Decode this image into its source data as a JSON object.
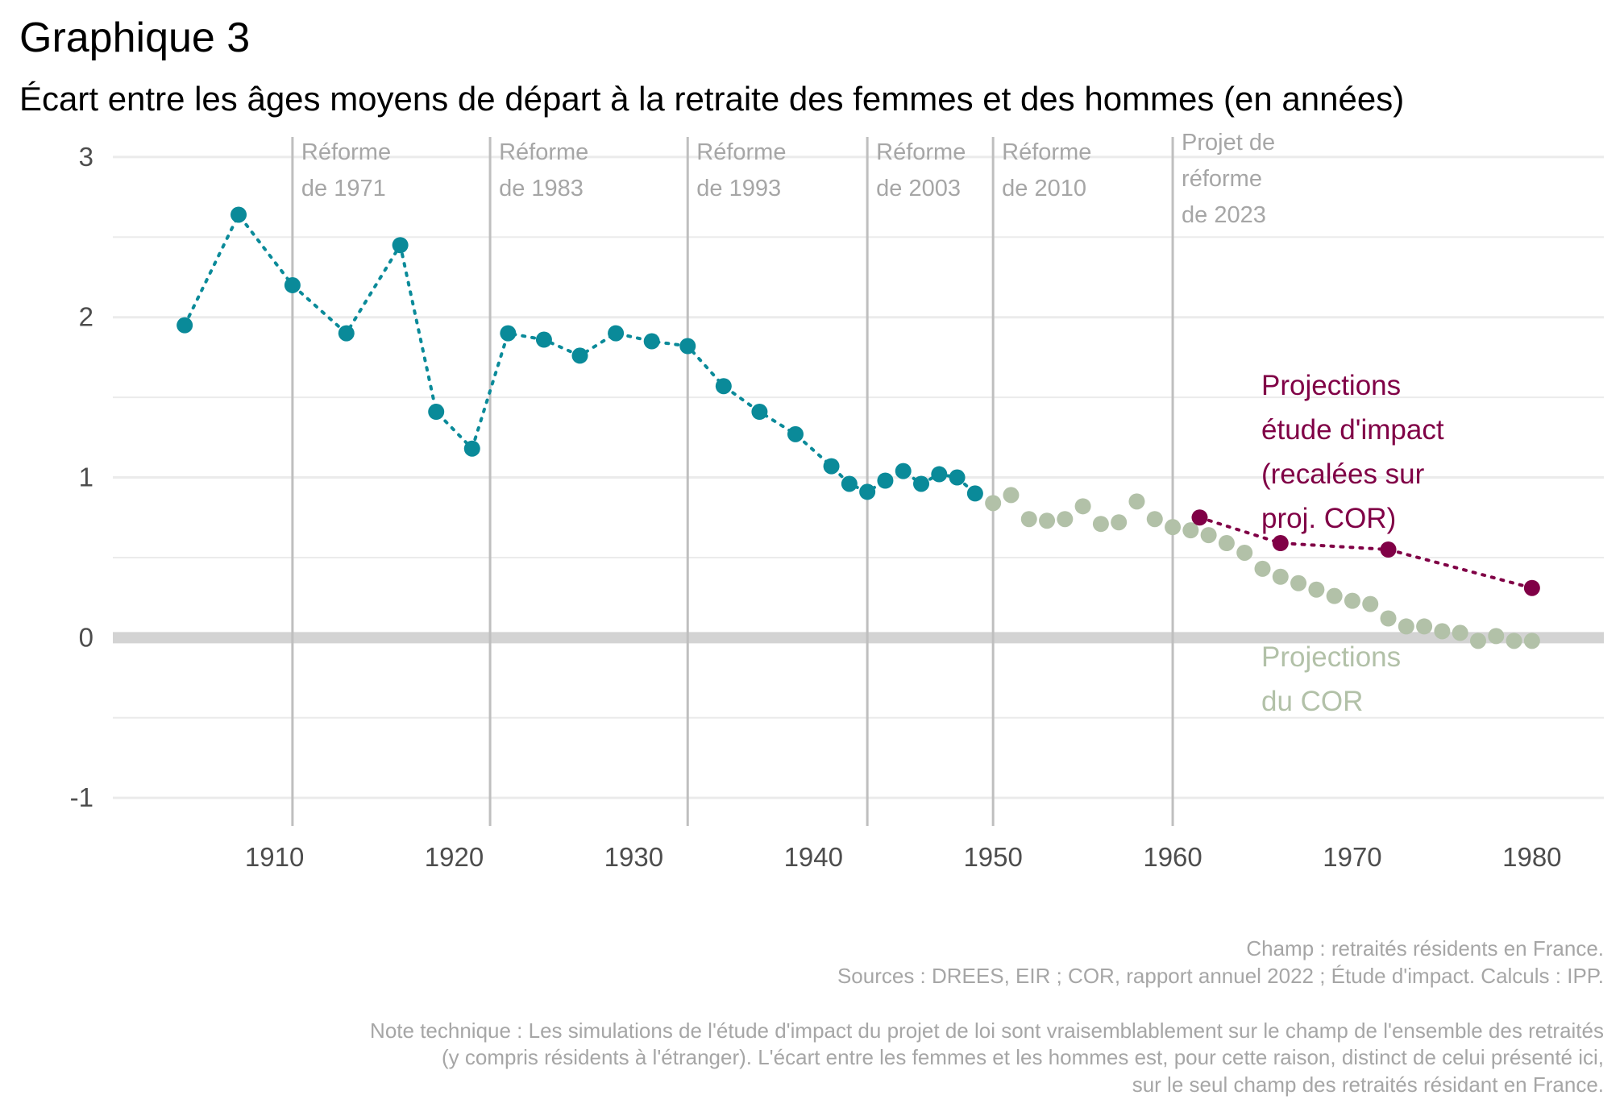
{
  "header": {
    "title": "Graphique 3",
    "subtitle": "Écart entre les âges moyens de départ à la retraite des femmes et des hommes (en années)"
  },
  "colors": {
    "observed": "#0a8a99",
    "cor": "#b2c1a8",
    "impact": "#800046",
    "reform_line": "#bfbfbf",
    "reform_text": "#a6a6a6",
    "grid": "#ebebeb",
    "zero_line": "#d3d3d3",
    "axis_text": "#4d4d4d",
    "footer_text": "#a6a6a6"
  },
  "chart_data": {
    "type": "scatter",
    "xlim": [
      1901,
      1984
    ],
    "ylim": [
      -1.15,
      3.1
    ],
    "x_ticks": [
      "1910",
      "1920",
      "1930",
      "1940",
      "1950",
      "1960",
      "1970",
      "1980"
    ],
    "y_ticks": [
      "-1",
      "0",
      "1",
      "2",
      "3"
    ],
    "grid": true,
    "reforms": [
      {
        "x": 1911,
        "lines": [
          "Réforme",
          "de 1971"
        ]
      },
      {
        "x": 1922,
        "lines": [
          "Réforme",
          "de 1983"
        ]
      },
      {
        "x": 1933,
        "lines": [
          "Réforme",
          "de 1993"
        ]
      },
      {
        "x": 1943,
        "lines": [
          "Réforme",
          "de 2003"
        ]
      },
      {
        "x": 1950,
        "lines": [
          "Réforme",
          "de 2010"
        ]
      },
      {
        "x": 1960,
        "lines": [
          "Projet de",
          "réforme",
          "de 2023"
        ]
      }
    ],
    "series": [
      {
        "key": "observed",
        "x": [
          1905,
          1908,
          1911,
          1914,
          1917,
          1919,
          1921,
          1923,
          1925,
          1927,
          1929,
          1931,
          1933,
          1935,
          1937,
          1939,
          1941,
          1942,
          1943,
          1944,
          1945,
          1946,
          1947,
          1948,
          1949
        ],
        "y": [
          1.95,
          2.64,
          2.2,
          1.9,
          2.45,
          1.41,
          1.18,
          1.9,
          1.86,
          1.76,
          1.9,
          1.85,
          1.82,
          1.57,
          1.41,
          1.27,
          1.07,
          0.96,
          0.91,
          0.98,
          1.04,
          0.96,
          1.02,
          1.0,
          0.9
        ]
      },
      {
        "key": "cor",
        "name": "Projections du COR",
        "x": [
          1950,
          1951,
          1952,
          1953,
          1954,
          1955,
          1956,
          1957,
          1958,
          1959,
          1960,
          1961,
          1962,
          1963,
          1964,
          1965,
          1966,
          1967,
          1968,
          1969,
          1970,
          1971,
          1972,
          1973,
          1974,
          1975,
          1976,
          1977,
          1978,
          1979,
          1980
        ],
        "y": [
          0.84,
          0.89,
          0.74,
          0.73,
          0.74,
          0.82,
          0.71,
          0.72,
          0.85,
          0.74,
          0.69,
          0.67,
          0.64,
          0.59,
          0.53,
          0.43,
          0.38,
          0.34,
          0.3,
          0.26,
          0.23,
          0.21,
          0.12,
          0.07,
          0.07,
          0.04,
          0.03,
          -0.02,
          0.01,
          -0.02,
          -0.02
        ]
      },
      {
        "key": "impact",
        "name": "Projections étude d'impact (recalées sur proj. COR)",
        "x": [
          1961.5,
          1966,
          1972,
          1980
        ],
        "y": [
          0.75,
          0.59,
          0.55,
          0.31
        ]
      }
    ],
    "labels": {
      "impact": [
        "Projections",
        "étude d'impact",
        "(recalées sur",
        "proj. COR)"
      ],
      "cor": [
        "Projections",
        "du COR"
      ]
    }
  },
  "footer": {
    "champ": "Champ : retraités résidents en France.",
    "sources": "Sources : DREES, EIR ; COR, rapport annuel 2022 ; Étude d'impact. Calculs : IPP.",
    "note_1": "Note technique : Les simulations de l'étude d'impact du projet de loi sont vraisemblablement sur le champ de l'ensemble des retraités",
    "note_2": "(y compris résidents à l'étranger). L'écart entre les femmes et les hommes est, pour cette raison, distinct de celui présenté ici,",
    "note_3": "sur le seul champ des retraités résidant en France."
  }
}
